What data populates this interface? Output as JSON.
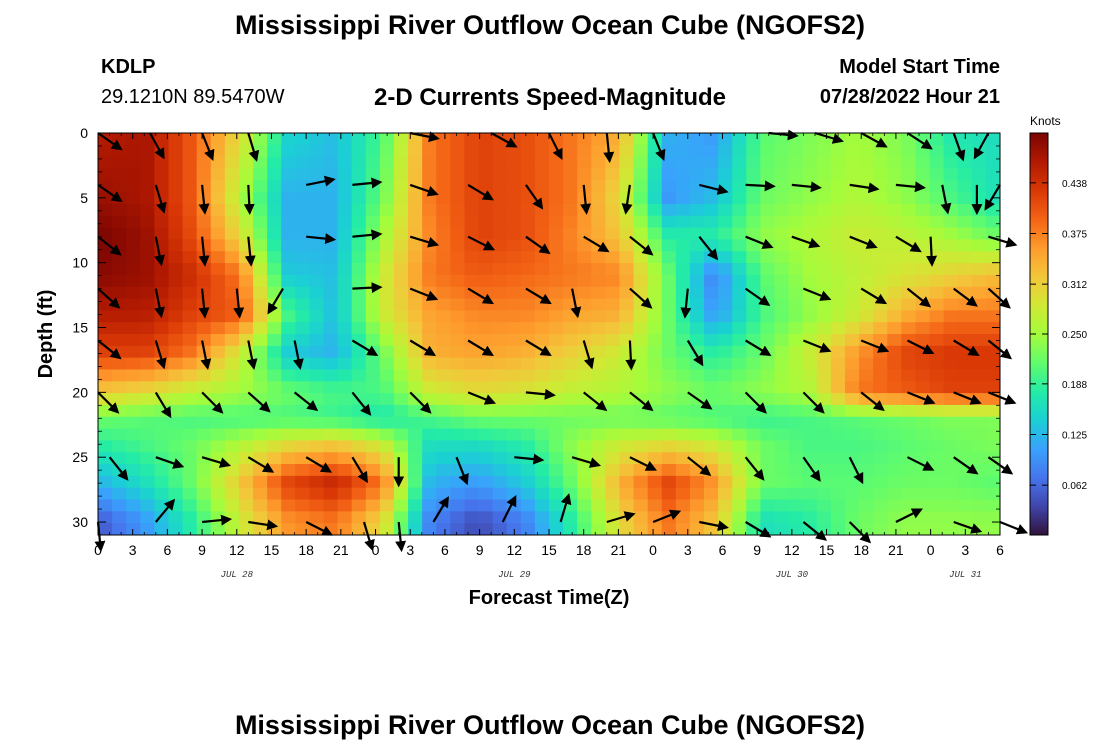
{
  "header": {
    "title": "Mississippi River Outflow Ocean Cube (NGOFS2)",
    "station_id": "KDLP",
    "station_coords": "29.1210N  89.5470W",
    "subtitle": "2-D Currents Speed-Magnitude",
    "model_start_label": "Model Start Time",
    "model_start_value": "07/28/2022 Hour 21"
  },
  "footer": {
    "title": "Mississippi River Outflow Ocean Cube (NGOFS2)"
  },
  "chart_data": {
    "type": "heatmap",
    "xlabel": "Forecast Time(Z)",
    "ylabel": "Depth (ft)",
    "x_tick_labels": [
      "0",
      "3",
      "6",
      "9",
      "12",
      "15",
      "18",
      "21",
      "0",
      "3",
      "6",
      "9",
      "12",
      "15",
      "18",
      "21",
      "0",
      "3",
      "6",
      "9",
      "12",
      "15",
      "18",
      "21",
      "0",
      "3",
      "6"
    ],
    "x_range_hours": [
      0,
      78
    ],
    "date_labels": [
      {
        "label": "JUL 28",
        "hour": 12
      },
      {
        "label": "JUL 29",
        "hour": 36
      },
      {
        "label": "JUL 30",
        "hour": 60
      },
      {
        "label": "JUL 31",
        "hour": 75
      }
    ],
    "y_tick_labels": [
      "0",
      "5",
      "10",
      "15",
      "20",
      "25",
      "30"
    ],
    "ylim": [
      0,
      31
    ],
    "y_inverted": true,
    "colorbar": {
      "title": "Knots",
      "labels": [
        "0.438",
        "0.375",
        "0.312",
        "0.250",
        "0.188",
        "0.125",
        "0.062"
      ],
      "range": [
        0.0,
        0.5
      ],
      "colors": [
        "#30123b",
        "#4145ab",
        "#4675ed",
        "#39a2fc",
        "#1bcfd4",
        "#24eca6",
        "#61fc6c",
        "#a4fc3b",
        "#d1e834",
        "#f3c63a",
        "#fe9b2d",
        "#f36315",
        "#d93806",
        "#b11901",
        "#7a0402"
      ]
    },
    "speed_rows": [
      {
        "depth": 0,
        "values": [
          0.46,
          0.47,
          0.4,
          0.3,
          0.15,
          0.13,
          0.2,
          0.38,
          0.42,
          0.41,
          0.38,
          0.34,
          0.12,
          0.1,
          0.21,
          0.23,
          0.25,
          0.23,
          0.17,
          0.16
        ]
      },
      {
        "depth": 5,
        "values": [
          0.48,
          0.47,
          0.4,
          0.26,
          0.12,
          0.12,
          0.22,
          0.38,
          0.42,
          0.41,
          0.38,
          0.3,
          0.1,
          0.13,
          0.22,
          0.24,
          0.26,
          0.24,
          0.2,
          0.16
        ]
      },
      {
        "depth": 8,
        "values": [
          0.5,
          0.48,
          0.41,
          0.3,
          0.12,
          0.12,
          0.25,
          0.37,
          0.42,
          0.41,
          0.37,
          0.32,
          0.18,
          0.18,
          0.24,
          0.26,
          0.28,
          0.27,
          0.25,
          0.22
        ]
      },
      {
        "depth": 11,
        "values": [
          0.49,
          0.48,
          0.44,
          0.38,
          0.14,
          0.13,
          0.28,
          0.38,
          0.4,
          0.39,
          0.38,
          0.37,
          0.22,
          0.08,
          0.21,
          0.25,
          0.27,
          0.29,
          0.31,
          0.33
        ]
      },
      {
        "depth": 14,
        "values": [
          0.46,
          0.46,
          0.42,
          0.4,
          0.2,
          0.13,
          0.28,
          0.35,
          0.37,
          0.37,
          0.35,
          0.34,
          0.22,
          0.1,
          0.2,
          0.24,
          0.28,
          0.34,
          0.38,
          0.38
        ]
      },
      {
        "depth": 17,
        "values": [
          0.42,
          0.42,
          0.38,
          0.28,
          0.14,
          0.12,
          0.22,
          0.34,
          0.35,
          0.34,
          0.31,
          0.28,
          0.22,
          0.18,
          0.22,
          0.28,
          0.36,
          0.42,
          0.43,
          0.43
        ]
      },
      {
        "depth": 20,
        "values": [
          0.32,
          0.3,
          0.27,
          0.25,
          0.22,
          0.2,
          0.2,
          0.28,
          0.3,
          0.29,
          0.27,
          0.26,
          0.24,
          0.22,
          0.24,
          0.26,
          0.38,
          0.4,
          0.42,
          0.42
        ]
      },
      {
        "depth": 22,
        "values": [
          0.22,
          0.21,
          0.2,
          0.2,
          0.2,
          0.19,
          0.17,
          0.2,
          0.22,
          0.22,
          0.22,
          0.22,
          0.21,
          0.2,
          0.19,
          0.2,
          0.21,
          0.22,
          0.23,
          0.23
        ]
      },
      {
        "depth": 24,
        "values": [
          0.18,
          0.2,
          0.22,
          0.26,
          0.3,
          0.32,
          0.28,
          0.16,
          0.16,
          0.18,
          0.24,
          0.28,
          0.3,
          0.28,
          0.22,
          0.2,
          0.2,
          0.21,
          0.22,
          0.23
        ]
      },
      {
        "depth": 27,
        "values": [
          0.12,
          0.16,
          0.22,
          0.32,
          0.42,
          0.45,
          0.38,
          0.12,
          0.1,
          0.14,
          0.22,
          0.34,
          0.42,
          0.36,
          0.22,
          0.21,
          0.21,
          0.22,
          0.22,
          0.21
        ]
      },
      {
        "depth": 30,
        "values": [
          0.05,
          0.1,
          0.18,
          0.28,
          0.36,
          0.38,
          0.3,
          0.08,
          0.04,
          0.08,
          0.18,
          0.3,
          0.38,
          0.32,
          0.16,
          0.18,
          0.22,
          0.24,
          0.24,
          0.24
        ]
      }
    ],
    "vectors": [
      {
        "hour": 0,
        "depth": 0,
        "u": 1.0,
        "v": 0.7
      },
      {
        "hour": 4.5,
        "depth": 0,
        "u": 0.55,
        "v": 1.0
      },
      {
        "hour": 9,
        "depth": 0,
        "u": 0.4,
        "v": 1.0
      },
      {
        "hour": 13,
        "depth": 0,
        "u": 0.3,
        "v": 1.0
      },
      {
        "hour": 27,
        "depth": 0,
        "u": 1.0,
        "v": 0.2
      },
      {
        "hour": 34,
        "depth": 0,
        "u": 1.0,
        "v": 0.55
      },
      {
        "hour": 39,
        "depth": 0,
        "u": 0.5,
        "v": 1.0
      },
      {
        "hour": 44,
        "depth": 0,
        "u": 0.1,
        "v": 1.0
      },
      {
        "hour": 48,
        "depth": 0,
        "u": 0.4,
        "v": 1.0
      },
      {
        "hour": 58,
        "depth": 0,
        "u": 1.0,
        "v": 0.1
      },
      {
        "hour": 62,
        "depth": 0,
        "u": 1.0,
        "v": 0.3
      },
      {
        "hour": 66,
        "depth": 0,
        "u": 1.0,
        "v": 0.55
      },
      {
        "hour": 70,
        "depth": 0,
        "u": 1.0,
        "v": 0.65
      },
      {
        "hour": 74,
        "depth": 0,
        "u": 0.35,
        "v": 1.0
      },
      {
        "hour": 77,
        "depth": 0,
        "u": -0.55,
        "v": 1.0
      },
      {
        "hour": 0,
        "depth": 4,
        "u": 1.0,
        "v": 0.7
      },
      {
        "hour": 5,
        "depth": 4,
        "u": 0.3,
        "v": 1.0
      },
      {
        "hour": 9,
        "depth": 4,
        "u": 0.1,
        "v": 1.0
      },
      {
        "hour": 13,
        "depth": 4,
        "u": 0.05,
        "v": 1.0
      },
      {
        "hour": 18,
        "depth": 4,
        "u": 1.0,
        "v": -0.2
      },
      {
        "hour": 22,
        "depth": 4,
        "u": 1.0,
        "v": -0.1
      },
      {
        "hour": 27,
        "depth": 4,
        "u": 1.0,
        "v": 0.35
      },
      {
        "hour": 32,
        "depth": 4,
        "u": 1.0,
        "v": 0.6
      },
      {
        "hour": 37,
        "depth": 4,
        "u": 0.7,
        "v": 1.0
      },
      {
        "hour": 42,
        "depth": 4,
        "u": 0.1,
        "v": 1.0
      },
      {
        "hour": 46,
        "depth": 4,
        "u": -0.15,
        "v": 1.0
      },
      {
        "hour": 52,
        "depth": 4,
        "u": 1.0,
        "v": 0.25
      },
      {
        "hour": 56,
        "depth": 4,
        "u": 1.0,
        "v": 0.05
      },
      {
        "hour": 60,
        "depth": 4,
        "u": 1.0,
        "v": 0.1
      },
      {
        "hour": 65,
        "depth": 4,
        "u": 1.0,
        "v": 0.15
      },
      {
        "hour": 69,
        "depth": 4,
        "u": 1.0,
        "v": 0.1
      },
      {
        "hour": 73,
        "depth": 4,
        "u": 0.2,
        "v": 1.0
      },
      {
        "hour": 76,
        "depth": 4,
        "u": 0.0,
        "v": 1.0
      },
      {
        "hour": 78,
        "depth": 4,
        "u": -0.6,
        "v": 1.0
      },
      {
        "hour": 0,
        "depth": 8,
        "u": 1.0,
        "v": 0.8
      },
      {
        "hour": 5,
        "depth": 8,
        "u": 0.2,
        "v": 1.0
      },
      {
        "hour": 9,
        "depth": 8,
        "u": 0.1,
        "v": 1.0
      },
      {
        "hour": 13,
        "depth": 8,
        "u": 0.1,
        "v": 1.0
      },
      {
        "hour": 18,
        "depth": 8,
        "u": 1.0,
        "v": 0.1
      },
      {
        "hour": 22,
        "depth": 8,
        "u": 1.0,
        "v": -0.1
      },
      {
        "hour": 27,
        "depth": 8,
        "u": 1.0,
        "v": 0.3
      },
      {
        "hour": 32,
        "depth": 8,
        "u": 1.0,
        "v": 0.5
      },
      {
        "hour": 37,
        "depth": 8,
        "u": 1.0,
        "v": 0.7
      },
      {
        "hour": 42,
        "depth": 8,
        "u": 1.0,
        "v": 0.6
      },
      {
        "hour": 46,
        "depth": 8,
        "u": 1.0,
        "v": 0.8
      },
      {
        "hour": 52,
        "depth": 8,
        "u": 0.8,
        "v": 1.0
      },
      {
        "hour": 56,
        "depth": 8,
        "u": 1.0,
        "v": 0.4
      },
      {
        "hour": 60,
        "depth": 8,
        "u": 1.0,
        "v": 0.35
      },
      {
        "hour": 65,
        "depth": 8,
        "u": 1.0,
        "v": 0.4
      },
      {
        "hour": 69,
        "depth": 8,
        "u": 1.0,
        "v": 0.6
      },
      {
        "hour": 72,
        "depth": 8,
        "u": 0.05,
        "v": 1.0
      },
      {
        "hour": 77,
        "depth": 8,
        "u": 1.0,
        "v": 0.3
      },
      {
        "hour": 0,
        "depth": 12,
        "u": 1.0,
        "v": 0.9
      },
      {
        "hour": 5,
        "depth": 12,
        "u": 0.2,
        "v": 1.0
      },
      {
        "hour": 9,
        "depth": 12,
        "u": 0.1,
        "v": 1.0
      },
      {
        "hour": 12,
        "depth": 12,
        "u": 0.1,
        "v": 1.0
      },
      {
        "hour": 16,
        "depth": 12,
        "u": -0.6,
        "v": 1.0
      },
      {
        "hour": 22,
        "depth": 12,
        "u": 1.0,
        "v": -0.05
      },
      {
        "hour": 27,
        "depth": 12,
        "u": 1.0,
        "v": 0.4
      },
      {
        "hour": 32,
        "depth": 12,
        "u": 1.0,
        "v": 0.6
      },
      {
        "hour": 37,
        "depth": 12,
        "u": 1.0,
        "v": 0.6
      },
      {
        "hour": 41,
        "depth": 12,
        "u": 0.2,
        "v": 1.0
      },
      {
        "hour": 46,
        "depth": 12,
        "u": 1.0,
        "v": 0.9
      },
      {
        "hour": 51,
        "depth": 12,
        "u": -0.1,
        "v": 1.0
      },
      {
        "hour": 56,
        "depth": 12,
        "u": 1.0,
        "v": 0.7
      },
      {
        "hour": 61,
        "depth": 12,
        "u": 1.0,
        "v": 0.4
      },
      {
        "hour": 66,
        "depth": 12,
        "u": 1.0,
        "v": 0.6
      },
      {
        "hour": 70,
        "depth": 12,
        "u": 1.0,
        "v": 0.8
      },
      {
        "hour": 74,
        "depth": 12,
        "u": 1.0,
        "v": 0.75
      },
      {
        "hour": 77,
        "depth": 12,
        "u": 1.0,
        "v": 0.9
      },
      {
        "hour": 0,
        "depth": 16,
        "u": 1.0,
        "v": 0.8
      },
      {
        "hour": 5,
        "depth": 16,
        "u": 0.3,
        "v": 1.0
      },
      {
        "hour": 9,
        "depth": 16,
        "u": 0.2,
        "v": 1.0
      },
      {
        "hour": 13,
        "depth": 16,
        "u": 0.2,
        "v": 1.0
      },
      {
        "hour": 17,
        "depth": 16,
        "u": 0.2,
        "v": 1.0
      },
      {
        "hour": 22,
        "depth": 16,
        "u": 1.0,
        "v": 0.6
      },
      {
        "hour": 27,
        "depth": 16,
        "u": 1.0,
        "v": 0.6
      },
      {
        "hour": 32,
        "depth": 16,
        "u": 1.0,
        "v": 0.6
      },
      {
        "hour": 37,
        "depth": 16,
        "u": 1.0,
        "v": 0.6
      },
      {
        "hour": 42,
        "depth": 16,
        "u": 0.3,
        "v": 1.0
      },
      {
        "hour": 46,
        "depth": 16,
        "u": 0.05,
        "v": 1.0
      },
      {
        "hour": 51,
        "depth": 16,
        "u": 0.6,
        "v": 1.0
      },
      {
        "hour": 56,
        "depth": 16,
        "u": 1.0,
        "v": 0.6
      },
      {
        "hour": 61,
        "depth": 16,
        "u": 1.0,
        "v": 0.4
      },
      {
        "hour": 66,
        "depth": 16,
        "u": 1.0,
        "v": 0.4
      },
      {
        "hour": 70,
        "depth": 16,
        "u": 1.0,
        "v": 0.5
      },
      {
        "hour": 74,
        "depth": 16,
        "u": 1.0,
        "v": 0.6
      },
      {
        "hour": 77,
        "depth": 16,
        "u": 1.0,
        "v": 0.8
      },
      {
        "hour": 0,
        "depth": 20,
        "u": 1.0,
        "v": 1.0
      },
      {
        "hour": 5,
        "depth": 20,
        "u": 0.6,
        "v": 1.0
      },
      {
        "hour": 9,
        "depth": 20,
        "u": 1.0,
        "v": 1.0
      },
      {
        "hour": 13,
        "depth": 20,
        "u": 1.0,
        "v": 0.9
      },
      {
        "hour": 17,
        "depth": 20,
        "u": 1.0,
        "v": 0.8
      },
      {
        "hour": 22,
        "depth": 20,
        "u": 0.8,
        "v": 1.0
      },
      {
        "hour": 27,
        "depth": 20,
        "u": 1.0,
        "v": 1.0
      },
      {
        "hour": 32,
        "depth": 20,
        "u": 1.0,
        "v": 0.4
      },
      {
        "hour": 37,
        "depth": 20,
        "u": 1.0,
        "v": 0.1
      },
      {
        "hour": 42,
        "depth": 20,
        "u": 1.0,
        "v": 0.8
      },
      {
        "hour": 46,
        "depth": 20,
        "u": 1.0,
        "v": 0.8
      },
      {
        "hour": 51,
        "depth": 20,
        "u": 1.0,
        "v": 0.7
      },
      {
        "hour": 56,
        "depth": 20,
        "u": 1.0,
        "v": 1.0
      },
      {
        "hour": 61,
        "depth": 20,
        "u": 1.0,
        "v": 1.0
      },
      {
        "hour": 66,
        "depth": 20,
        "u": 1.0,
        "v": 0.8
      },
      {
        "hour": 70,
        "depth": 20,
        "u": 1.0,
        "v": 0.4
      },
      {
        "hour": 74,
        "depth": 20,
        "u": 1.0,
        "v": 0.4
      },
      {
        "hour": 77,
        "depth": 20,
        "u": 1.0,
        "v": 0.4
      },
      {
        "hour": 1,
        "depth": 25,
        "u": 0.8,
        "v": 1.0
      },
      {
        "hour": 5,
        "depth": 25,
        "u": 1.0,
        "v": 0.35
      },
      {
        "hour": 9,
        "depth": 25,
        "u": 1.0,
        "v": 0.3
      },
      {
        "hour": 13,
        "depth": 25,
        "u": 1.0,
        "v": 0.6
      },
      {
        "hour": 18,
        "depth": 25,
        "u": 1.0,
        "v": 0.6
      },
      {
        "hour": 22,
        "depth": 25,
        "u": 0.6,
        "v": 1.0
      },
      {
        "hour": 26,
        "depth": 25,
        "u": 0.0,
        "v": 1.0
      },
      {
        "hour": 31,
        "depth": 25,
        "u": 0.4,
        "v": 1.0
      },
      {
        "hour": 36,
        "depth": 25,
        "u": 1.0,
        "v": 0.1
      },
      {
        "hour": 41,
        "depth": 25,
        "u": 1.0,
        "v": 0.3
      },
      {
        "hour": 46,
        "depth": 25,
        "u": 1.0,
        "v": 0.5
      },
      {
        "hour": 51,
        "depth": 25,
        "u": 1.0,
        "v": 0.8
      },
      {
        "hour": 56,
        "depth": 25,
        "u": 0.8,
        "v": 1.0
      },
      {
        "hour": 61,
        "depth": 25,
        "u": 0.7,
        "v": 1.0
      },
      {
        "hour": 65,
        "depth": 25,
        "u": 0.5,
        "v": 1.0
      },
      {
        "hour": 70,
        "depth": 25,
        "u": 1.0,
        "v": 0.5
      },
      {
        "hour": 74,
        "depth": 25,
        "u": 1.0,
        "v": 0.7
      },
      {
        "hour": 77,
        "depth": 25,
        "u": 1.0,
        "v": 0.7
      },
      {
        "hour": 0,
        "depth": 30,
        "u": 0.1,
        "v": 1.0
      },
      {
        "hour": 5,
        "depth": 30,
        "u": 1.0,
        "v": -1.2
      },
      {
        "hour": 9,
        "depth": 30,
        "u": 1.0,
        "v": -0.1
      },
      {
        "hour": 13,
        "depth": 30,
        "u": 1.0,
        "v": 0.15
      },
      {
        "hour": 18,
        "depth": 30,
        "u": 1.0,
        "v": 0.5
      },
      {
        "hour": 23,
        "depth": 30,
        "u": 0.3,
        "v": 1.0
      },
      {
        "hour": 26,
        "depth": 30,
        "u": 0.1,
        "v": 1.0
      },
      {
        "hour": 29,
        "depth": 30,
        "u": 0.6,
        "v": -1.0
      },
      {
        "hour": 35,
        "depth": 30,
        "u": 0.5,
        "v": -1.0
      },
      {
        "hour": 40,
        "depth": 30,
        "u": 0.3,
        "v": -1.0
      },
      {
        "hour": 44,
        "depth": 30,
        "u": 1.0,
        "v": -0.3
      },
      {
        "hour": 48,
        "depth": 30,
        "u": 1.0,
        "v": -0.4
      },
      {
        "hour": 52,
        "depth": 30,
        "u": 1.0,
        "v": 0.2
      },
      {
        "hour": 56,
        "depth": 30,
        "u": 1.0,
        "v": 0.6
      },
      {
        "hour": 61,
        "depth": 30,
        "u": 1.0,
        "v": 0.8
      },
      {
        "hour": 65,
        "depth": 30,
        "u": 1.0,
        "v": 1.0
      },
      {
        "hour": 69,
        "depth": 30,
        "u": 1.0,
        "v": -0.5
      },
      {
        "hour": 74,
        "depth": 30,
        "u": 1.0,
        "v": 0.35
      },
      {
        "hour": 78,
        "depth": 30,
        "u": 1.0,
        "v": 0.4
      }
    ]
  }
}
